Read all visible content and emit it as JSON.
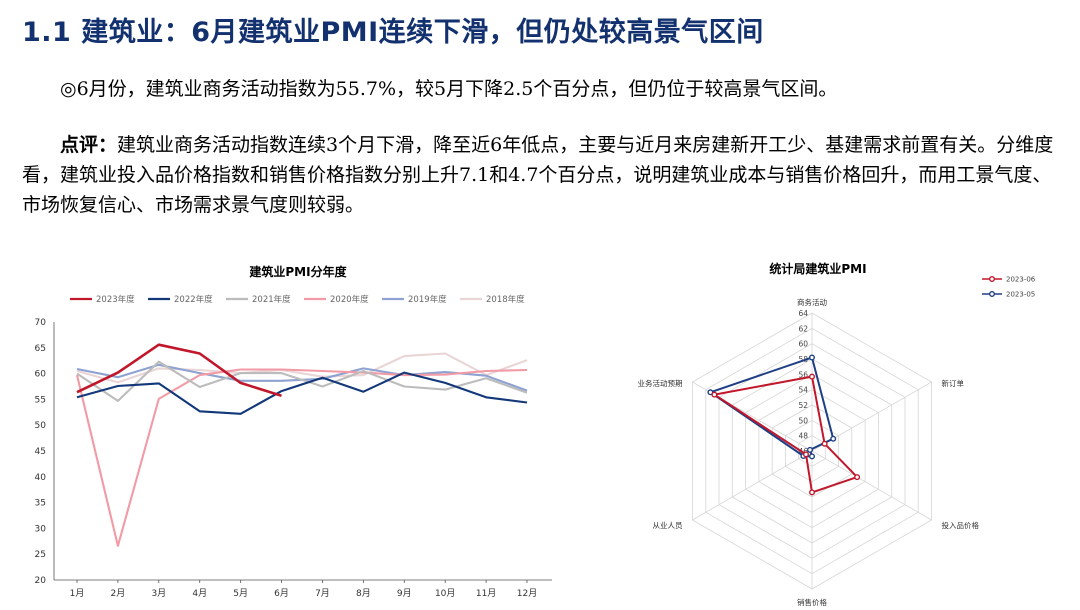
{
  "slide": {
    "title": "1.1 建筑业：6月建筑业PMI连续下滑，但仍处较高景气区间",
    "summary": "◎6月份，建筑业商务活动指数为55.7%，较5月下降2.5个百分点，但仍位于较高景气区间。",
    "comment_label": "点评：",
    "comment_body": "建筑业商务活动指数连续3个月下滑，降至近6年低点，主要与近月来房建新开工少、基建需求前置有关。分维度看，建筑业投入品价格指数和销售价格指数分别上升7.1和4.7个百分点，说明建筑业成本与销售价格回升，而用工景气度、市场恢复信心、市场需求景气度则较弱。"
  },
  "chart_data": [
    {
      "type": "line",
      "title": "建筑业PMI分年度",
      "categories": [
        "1月",
        "2月",
        "3月",
        "4月",
        "5月",
        "6月",
        "7月",
        "8月",
        "9月",
        "10月",
        "11月",
        "12月"
      ],
      "ylim": [
        20,
        70
      ],
      "yticks": [
        20,
        25,
        30,
        35,
        40,
        45,
        50,
        55,
        60,
        65,
        70
      ],
      "grid": false,
      "legend_position": "top",
      "series": [
        {
          "name": "2023年度",
          "color": "#c0172b",
          "values": [
            56.4,
            60.2,
            65.6,
            63.9,
            58.2,
            55.7,
            null,
            null,
            null,
            null,
            null,
            null
          ]
        },
        {
          "name": "2022年度",
          "color": "#13387a",
          "values": [
            55.4,
            57.6,
            58.1,
            52.7,
            52.2,
            56.6,
            59.2,
            56.5,
            60.2,
            58.2,
            55.4,
            54.4
          ]
        },
        {
          "name": "2021年度",
          "color": "#bcbcbc",
          "values": [
            60.0,
            54.7,
            62.3,
            57.4,
            60.1,
            60.1,
            57.5,
            60.5,
            57.5,
            56.9,
            59.1,
            56.3
          ]
        },
        {
          "name": "2020年度",
          "color": "#f29aa5",
          "values": [
            59.7,
            26.6,
            55.1,
            59.7,
            60.8,
            60.8,
            60.5,
            60.2,
            59.7,
            59.8,
            60.5,
            60.7
          ]
        },
        {
          "name": "2019年度",
          "color": "#8ea2d1",
          "values": [
            60.9,
            59.3,
            61.7,
            60.1,
            58.6,
            58.6,
            59.0,
            61.0,
            59.7,
            60.3,
            59.6,
            56.7
          ]
        },
        {
          "name": "2018年度",
          "color": "#ead5d6",
          "values": [
            60.5,
            58.3,
            61.0,
            60.7,
            60.1,
            60.7,
            59.4,
            59.7,
            63.4,
            63.9,
            59.7,
            62.6
          ]
        }
      ]
    },
    {
      "type": "radar",
      "title": "统计局建筑业PMI",
      "axes": [
        "商务活动",
        "新订单",
        "投入品价格",
        "销售价格",
        "从业人员",
        "业务活动预期"
      ],
      "rlim": [
        46,
        64
      ],
      "rticks": [
        46,
        48,
        50,
        52,
        54,
        56,
        58,
        60,
        62,
        64
      ],
      "legend_position": "top-right",
      "series": [
        {
          "name": "2023-06",
          "color": "#c0172b",
          "values": [
            55.7,
            47.9,
            52.8,
            51.4,
            46.9,
            60.7
          ]
        },
        {
          "name": "2023-05",
          "color": "#1f3f85",
          "values": [
            58.2,
            49.2,
            45.7,
            46.7,
            47.3,
            61.3
          ]
        }
      ]
    }
  ]
}
